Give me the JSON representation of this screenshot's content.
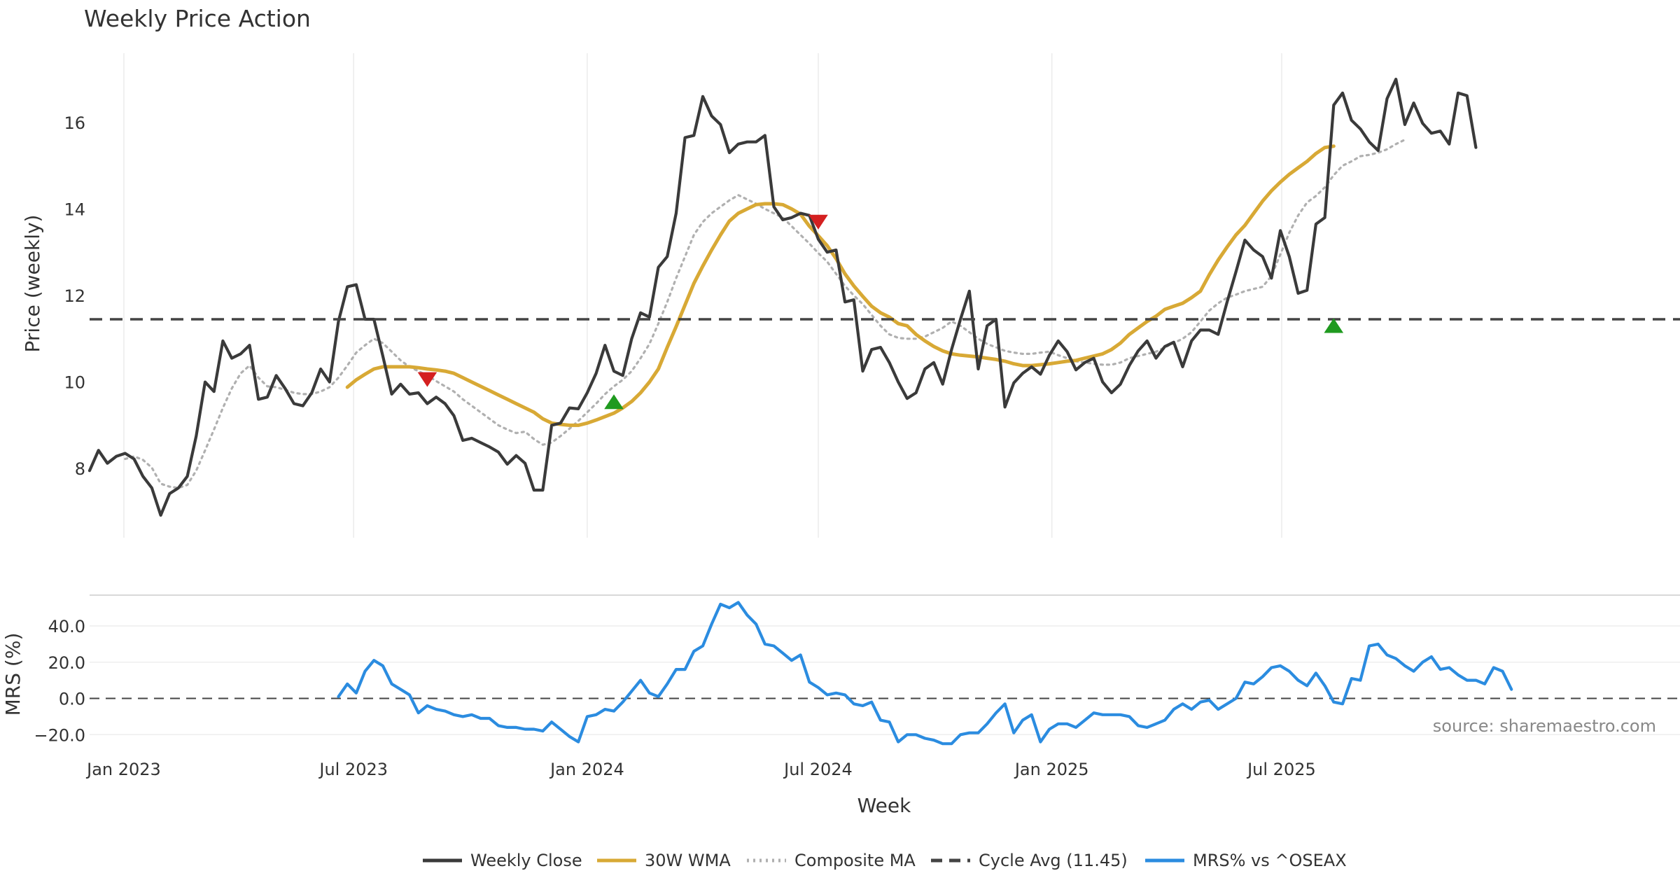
{
  "chart_data": [
    {
      "panel": "price",
      "type": "line",
      "title": "Weekly Price Action",
      "xlabel": "",
      "ylabel": "Price (weekly)",
      "ylim": [
        6.4,
        17.6
      ],
      "yticks": [
        8,
        10,
        12,
        14,
        16
      ],
      "grid": "vertical",
      "time_start": "2022-12-05",
      "week_step_days": 7,
      "series": [
        {
          "name": "Weekly Close",
          "color": "#3a3a3a",
          "style": "solid",
          "values": [
            7.95,
            8.42,
            8.12,
            8.28,
            8.35,
            8.22,
            7.82,
            7.55,
            6.92,
            7.42,
            7.55,
            7.82,
            8.75,
            10.0,
            9.78,
            10.95,
            10.55,
            10.65,
            10.85,
            9.6,
            9.65,
            10.15,
            9.85,
            9.5,
            9.45,
            9.75,
            10.3,
            10.0,
            11.4,
            12.2,
            12.25,
            11.45,
            11.45,
            10.6,
            9.72,
            9.95,
            9.72,
            9.75,
            9.5,
            9.65,
            9.5,
            9.22,
            8.65,
            8.7,
            8.6,
            8.5,
            8.38,
            8.1,
            8.3,
            8.12,
            7.5,
            7.5,
            9.0,
            9.05,
            9.4,
            9.38,
            9.75,
            10.2,
            10.85,
            10.25,
            10.15,
            11.0,
            11.6,
            11.5,
            12.65,
            12.9,
            13.9,
            15.65,
            15.7,
            16.6,
            16.15,
            15.95,
            15.3,
            15.5,
            15.55,
            15.55,
            15.7,
            14.05,
            13.75,
            13.8,
            13.9,
            13.85,
            13.3,
            13.0,
            13.05,
            11.85,
            11.9,
            10.25,
            10.75,
            10.8,
            10.45,
            10.0,
            9.62,
            9.75,
            10.3,
            10.45,
            9.95,
            10.75,
            11.45,
            12.1,
            10.3,
            11.3,
            11.45,
            9.42,
            9.98,
            10.2,
            10.35,
            10.18,
            10.62,
            10.95,
            10.7,
            10.28,
            10.45,
            10.55,
            10.0,
            9.75,
            9.95,
            10.38,
            10.72,
            10.95,
            10.55,
            10.82,
            10.92,
            10.35,
            10.95,
            11.2,
            11.2,
            11.1,
            11.85,
            12.55,
            13.28,
            13.05,
            12.9,
            12.4,
            13.5,
            12.9,
            12.05,
            12.12,
            13.65,
            13.8,
            16.4,
            16.68,
            16.05,
            15.85,
            15.55,
            15.35,
            16.55,
            17.0,
            15.95,
            16.45,
            15.98,
            15.75,
            15.8,
            15.5,
            16.68,
            16.62,
            15.42
          ]
        },
        {
          "name": "30W WMA",
          "color": "#d8a935",
          "style": "solid",
          "values": [
            null,
            null,
            null,
            null,
            null,
            null,
            null,
            null,
            null,
            null,
            null,
            null,
            null,
            null,
            null,
            null,
            null,
            null,
            null,
            null,
            null,
            null,
            null,
            null,
            null,
            null,
            null,
            null,
            null,
            9.88,
            10.05,
            10.18,
            10.3,
            10.35,
            10.35,
            10.35,
            10.35,
            10.33,
            10.3,
            10.28,
            10.25,
            10.2,
            10.1,
            10.0,
            9.9,
            9.8,
            9.7,
            9.6,
            9.5,
            9.4,
            9.3,
            9.15,
            9.05,
            9.02,
            9.0,
            9.0,
            9.05,
            9.12,
            9.2,
            9.28,
            9.4,
            9.55,
            9.75,
            10.0,
            10.3,
            10.8,
            11.28,
            11.78,
            12.28,
            12.68,
            13.05,
            13.4,
            13.72,
            13.9,
            14.0,
            14.1,
            14.12,
            14.12,
            14.1,
            14.0,
            13.88,
            13.6,
            13.38,
            13.15,
            12.85,
            12.5,
            12.22,
            11.98,
            11.75,
            11.6,
            11.5,
            11.35,
            11.3,
            11.1,
            10.95,
            10.82,
            10.72,
            10.65,
            10.62,
            10.6,
            10.58,
            10.55,
            10.52,
            10.48,
            10.42,
            10.38,
            10.38,
            10.4,
            10.42,
            10.45,
            10.48,
            10.5,
            10.55,
            10.6,
            10.65,
            10.75,
            10.9,
            11.1,
            11.25,
            11.4,
            11.52,
            11.68,
            11.75,
            11.82,
            11.95,
            12.1,
            12.48,
            12.82,
            13.12,
            13.4,
            13.62,
            13.9,
            14.18,
            14.42,
            14.62,
            14.8,
            14.95,
            15.1,
            15.28,
            15.42,
            15.45
          ]
        },
        {
          "name": "Composite MA",
          "color": "#b0b0b0",
          "style": "dotted",
          "values": [
            null,
            null,
            null,
            null,
            8.22,
            8.28,
            8.2,
            8.02,
            7.65,
            7.58,
            7.55,
            7.62,
            7.95,
            8.42,
            8.9,
            9.4,
            9.85,
            10.2,
            10.38,
            10.1,
            9.9,
            9.88,
            9.82,
            9.75,
            9.72,
            9.72,
            9.78,
            9.88,
            10.1,
            10.38,
            10.68,
            10.85,
            11.0,
            10.9,
            10.7,
            10.5,
            10.35,
            10.25,
            10.15,
            10.02,
            9.9,
            9.78,
            9.6,
            9.45,
            9.3,
            9.15,
            9.0,
            8.9,
            8.82,
            8.85,
            8.68,
            8.55,
            8.6,
            8.75,
            8.92,
            9.1,
            9.3,
            9.5,
            9.72,
            9.9,
            10.05,
            10.25,
            10.55,
            10.88,
            11.35,
            11.85,
            12.4,
            12.9,
            13.4,
            13.7,
            13.9,
            14.05,
            14.2,
            14.32,
            14.22,
            14.12,
            14.0,
            13.9,
            13.8,
            13.6,
            13.4,
            13.2,
            12.98,
            12.78,
            12.5,
            12.22,
            12.0,
            11.8,
            11.55,
            11.3,
            11.1,
            11.02,
            11.0,
            11.0,
            11.05,
            11.15,
            11.25,
            11.4,
            11.3,
            11.15,
            11.0,
            10.88,
            10.8,
            10.72,
            10.68,
            10.65,
            10.65,
            10.68,
            10.7,
            10.62,
            10.55,
            10.48,
            10.45,
            10.42,
            10.4,
            10.4,
            10.45,
            10.55,
            10.6,
            10.65,
            10.7,
            10.8,
            10.9,
            11.0,
            11.15,
            11.4,
            11.65,
            11.82,
            11.95,
            12.02,
            12.1,
            12.15,
            12.2,
            12.45,
            12.95,
            13.45,
            13.85,
            14.15,
            14.3,
            14.5,
            14.78,
            15.0,
            15.1,
            15.22,
            15.25,
            15.3,
            15.38,
            15.5,
            15.6
          ]
        },
        {
          "name": "Cycle Avg (11.45)",
          "color": "#444444",
          "style": "dashed",
          "hline": 11.45
        }
      ],
      "markers": [
        {
          "type": "sell",
          "index": 38,
          "value": 10.08,
          "color": "#d42020"
        },
        {
          "type": "buy",
          "index": 59,
          "value": 9.52,
          "color": "#1f9a1f"
        },
        {
          "type": "sell",
          "index": 82,
          "value": 13.72,
          "color": "#d42020"
        },
        {
          "type": "buy",
          "index": 140,
          "value": 11.28,
          "color": "#1f9a1f"
        }
      ]
    },
    {
      "panel": "mrs",
      "type": "line",
      "xlabel": "Week",
      "ylabel": "MRS (%)",
      "ylim": [
        -28,
        57
      ],
      "yticks": [
        -20.0,
        0.0,
        20.0,
        40.0
      ],
      "ytick_labels": [
        "−20.0",
        "0.0",
        "20.0",
        "40.0"
      ],
      "zero_line": 0,
      "time_start": "2022-12-05",
      "week_step_days": 7,
      "xtick_labels": [
        "Jan 2023",
        "Jul 2023",
        "Jan 2024",
        "Jul 2024",
        "Jan 2025",
        "Jul 2025"
      ],
      "xtick_dates": [
        "2023-01-01",
        "2023-07-01",
        "2024-01-01",
        "2024-07-01",
        "2025-01-01",
        "2025-07-01"
      ],
      "annotation": "source: sharemaestro.com",
      "series": [
        {
          "name": "MRS% vs ^OSEAX",
          "color": "#2b8ce0",
          "style": "solid",
          "values": [
            null,
            null,
            null,
            null,
            null,
            null,
            null,
            null,
            null,
            null,
            null,
            null,
            null,
            null,
            null,
            null,
            null,
            null,
            null,
            null,
            null,
            null,
            null,
            null,
            null,
            null,
            null,
            null,
            1,
            8,
            3,
            15,
            21,
            18,
            8,
            5,
            2,
            -8,
            -4,
            -6,
            -7,
            -9,
            -10,
            -9,
            -11,
            -11,
            -15,
            -16,
            -16,
            -17,
            -17,
            -18,
            -13,
            -17,
            -21,
            -24,
            -10,
            -9,
            -6,
            -7,
            -2,
            4,
            10,
            3,
            1,
            8,
            16,
            16,
            26,
            29,
            41,
            52,
            50,
            53,
            46,
            41,
            30,
            29,
            25,
            21,
            24,
            9,
            6,
            2,
            3,
            2,
            -3,
            -4,
            -2,
            -12,
            -13,
            -24,
            -20,
            -20,
            -22,
            -23,
            -25,
            -25,
            -20,
            -19,
            -19,
            -14,
            -8,
            -3,
            -19,
            -12,
            -9,
            -24,
            -17,
            -14,
            -14,
            -16,
            -12,
            -8,
            -9,
            -9,
            -9,
            -10,
            -15,
            -16,
            -14,
            -12,
            -6,
            -3,
            -6,
            -2,
            -1,
            -6,
            -3,
            0,
            9,
            8,
            12,
            17,
            18,
            15,
            10,
            7,
            14,
            7,
            -2,
            -3,
            11,
            10,
            29,
            30,
            24,
            22,
            18,
            15,
            20,
            23,
            16,
            17,
            13,
            10,
            10,
            8,
            17,
            15,
            5
          ]
        }
      ]
    }
  ],
  "legend": {
    "placement": "bottom",
    "items": [
      {
        "label": "Weekly Close",
        "color": "#3a3a3a",
        "style": "solid"
      },
      {
        "label": "30W WMA",
        "color": "#d8a935",
        "style": "solid"
      },
      {
        "label": "Composite MA",
        "color": "#b0b0b0",
        "style": "dotted"
      },
      {
        "label": "Cycle Avg (11.45)",
        "color": "#444444",
        "style": "dashed"
      },
      {
        "label": "MRS% vs ^OSEAX",
        "color": "#2b8ce0",
        "style": "solid"
      }
    ]
  }
}
